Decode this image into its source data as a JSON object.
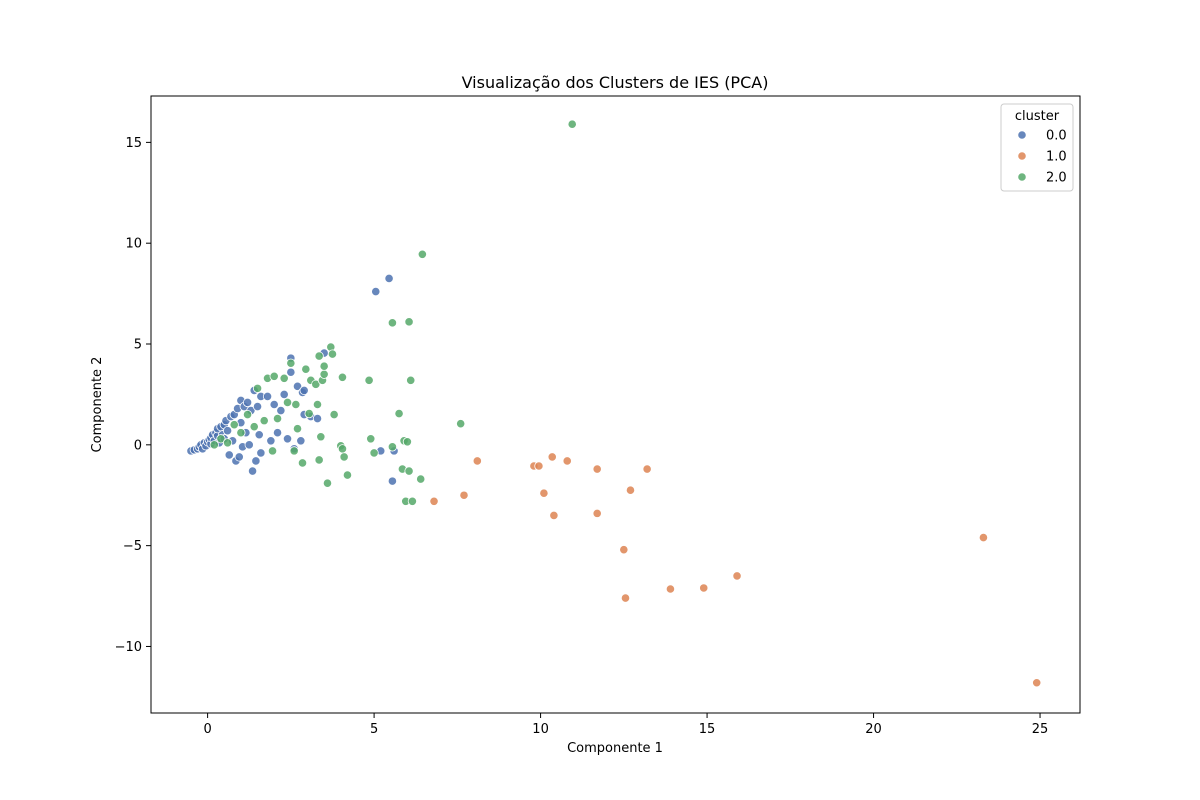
{
  "chart_data": {
    "type": "scatter",
    "title": "Visualização dos Clusters de IES (PCA)",
    "xlabel": "Componente 1",
    "ylabel": "Componente 2",
    "xlim": [
      -1.7,
      26.2
    ],
    "ylim": [
      -13.3,
      17.3
    ],
    "x_ticks": [
      0,
      5,
      10,
      15,
      20,
      25
    ],
    "y_ticks": [
      -10,
      -5,
      0,
      5,
      10,
      15
    ],
    "x_tick_labels": [
      "0",
      "5",
      "10",
      "15",
      "20",
      "25"
    ],
    "y_tick_labels": [
      "−10",
      "−5",
      "0",
      "5",
      "10",
      "15"
    ],
    "grid": false,
    "legend": {
      "title": "cluster",
      "position": "upper-right"
    },
    "series": [
      {
        "name": "0.0",
        "color": "#4c72b0",
        "points": [
          [
            -0.5,
            -0.3
          ],
          [
            -0.4,
            -0.25
          ],
          [
            -0.3,
            -0.2
          ],
          [
            -0.25,
            -0.1
          ],
          [
            -0.2,
            0.0
          ],
          [
            -0.15,
            -0.2
          ],
          [
            -0.1,
            0.1
          ],
          [
            -0.05,
            -0.05
          ],
          [
            0.0,
            0.15
          ],
          [
            0.05,
            0.25
          ],
          [
            0.1,
            0.05
          ],
          [
            0.1,
            0.35
          ],
          [
            0.15,
            0.5
          ],
          [
            0.2,
            0.2
          ],
          [
            0.25,
            0.6
          ],
          [
            0.3,
            0.45
          ],
          [
            0.3,
            0.8
          ],
          [
            0.35,
            0.1
          ],
          [
            0.4,
            0.9
          ],
          [
            0.45,
            0.5
          ],
          [
            0.5,
            1.0
          ],
          [
            0.5,
            0.3
          ],
          [
            0.55,
            1.2
          ],
          [
            0.6,
            0.7
          ],
          [
            0.65,
            -0.5
          ],
          [
            0.7,
            1.4
          ],
          [
            0.75,
            0.2
          ],
          [
            0.8,
            1.5
          ],
          [
            0.85,
            -0.8
          ],
          [
            0.9,
            1.8
          ],
          [
            0.95,
            -0.6
          ],
          [
            1.0,
            2.2
          ],
          [
            1.0,
            1.1
          ],
          [
            1.05,
            -0.1
          ],
          [
            1.1,
            1.9
          ],
          [
            1.15,
            0.6
          ],
          [
            1.2,
            2.1
          ],
          [
            1.25,
            0.0
          ],
          [
            1.3,
            1.7
          ],
          [
            1.35,
            -1.3
          ],
          [
            1.4,
            2.7
          ],
          [
            1.45,
            -0.8
          ],
          [
            1.5,
            1.9
          ],
          [
            1.55,
            0.5
          ],
          [
            1.6,
            2.4
          ],
          [
            1.6,
            -0.4
          ],
          [
            1.8,
            2.4
          ],
          [
            1.9,
            0.2
          ],
          [
            2.0,
            2.0
          ],
          [
            2.1,
            0.6
          ],
          [
            2.2,
            1.7
          ],
          [
            2.3,
            2.5
          ],
          [
            2.4,
            0.3
          ],
          [
            2.5,
            3.6
          ],
          [
            2.5,
            4.3
          ],
          [
            2.6,
            -0.2
          ],
          [
            2.7,
            2.9
          ],
          [
            2.8,
            0.2
          ],
          [
            2.85,
            2.6
          ],
          [
            2.9,
            2.7
          ],
          [
            3.1,
            1.4
          ],
          [
            3.5,
            4.55
          ],
          [
            5.05,
            7.6
          ],
          [
            5.45,
            8.25
          ],
          [
            5.2,
            -0.3
          ],
          [
            5.6,
            -0.3
          ],
          [
            5.55,
            -1.8
          ],
          [
            2.9,
            1.5
          ],
          [
            3.3,
            1.3
          ]
        ]
      },
      {
        "name": "1.0",
        "color": "#dd8452",
        "points": [
          [
            6.8,
            -2.8
          ],
          [
            7.7,
            -2.5
          ],
          [
            8.1,
            -0.8
          ],
          [
            9.8,
            -1.05
          ],
          [
            9.95,
            -1.05
          ],
          [
            10.1,
            -2.4
          ],
          [
            10.35,
            -0.6
          ],
          [
            10.4,
            -3.5
          ],
          [
            10.8,
            -0.8
          ],
          [
            11.7,
            -1.2
          ],
          [
            11.7,
            -3.4
          ],
          [
            12.5,
            -5.2
          ],
          [
            12.55,
            -7.6
          ],
          [
            12.7,
            -2.25
          ],
          [
            13.2,
            -1.2
          ],
          [
            13.9,
            -7.15
          ],
          [
            14.9,
            -7.1
          ],
          [
            15.9,
            -6.5
          ],
          [
            23.3,
            -4.6
          ],
          [
            24.9,
            -11.8
          ]
        ]
      },
      {
        "name": "2.0",
        "color": "#55a868",
        "points": [
          [
            0.2,
            0.0
          ],
          [
            0.4,
            0.3
          ],
          [
            0.6,
            0.1
          ],
          [
            0.8,
            1.0
          ],
          [
            1.0,
            0.6
          ],
          [
            1.2,
            1.5
          ],
          [
            1.4,
            0.9
          ],
          [
            1.5,
            2.8
          ],
          [
            1.7,
            1.2
          ],
          [
            1.8,
            3.3
          ],
          [
            1.95,
            -0.3
          ],
          [
            2.0,
            3.4
          ],
          [
            2.1,
            1.3
          ],
          [
            2.3,
            3.3
          ],
          [
            2.4,
            2.1
          ],
          [
            2.5,
            4.05
          ],
          [
            2.6,
            -0.3
          ],
          [
            2.65,
            2.0
          ],
          [
            2.7,
            0.8
          ],
          [
            2.85,
            -0.9
          ],
          [
            2.95,
            3.75
          ],
          [
            3.1,
            3.2
          ],
          [
            3.25,
            3.0
          ],
          [
            3.3,
            2.0
          ],
          [
            3.35,
            4.4
          ],
          [
            3.4,
            0.4
          ],
          [
            3.45,
            3.2
          ],
          [
            3.5,
            3.5
          ],
          [
            3.5,
            3.9
          ],
          [
            3.6,
            -1.9
          ],
          [
            3.7,
            4.85
          ],
          [
            3.75,
            4.5
          ],
          [
            3.8,
            1.5
          ],
          [
            4.0,
            -0.05
          ],
          [
            4.05,
            -0.2
          ],
          [
            4.1,
            -0.6
          ],
          [
            4.2,
            -1.5
          ],
          [
            4.85,
            3.2
          ],
          [
            4.9,
            0.3
          ],
          [
            5.0,
            -0.4
          ],
          [
            5.55,
            6.05
          ],
          [
            5.55,
            -0.1
          ],
          [
            5.75,
            1.55
          ],
          [
            5.85,
            -1.2
          ],
          [
            5.9,
            0.2
          ],
          [
            5.95,
            -2.8
          ],
          [
            6.0,
            0.15
          ],
          [
            6.05,
            -1.3
          ],
          [
            6.1,
            3.2
          ],
          [
            6.15,
            -2.8
          ],
          [
            6.05,
            6.1
          ],
          [
            6.4,
            -1.7
          ],
          [
            6.45,
            9.45
          ],
          [
            7.6,
            1.05
          ],
          [
            10.95,
            15.9
          ],
          [
            3.35,
            -0.75
          ],
          [
            4.05,
            3.35
          ],
          [
            3.05,
            1.55
          ]
        ]
      }
    ]
  }
}
